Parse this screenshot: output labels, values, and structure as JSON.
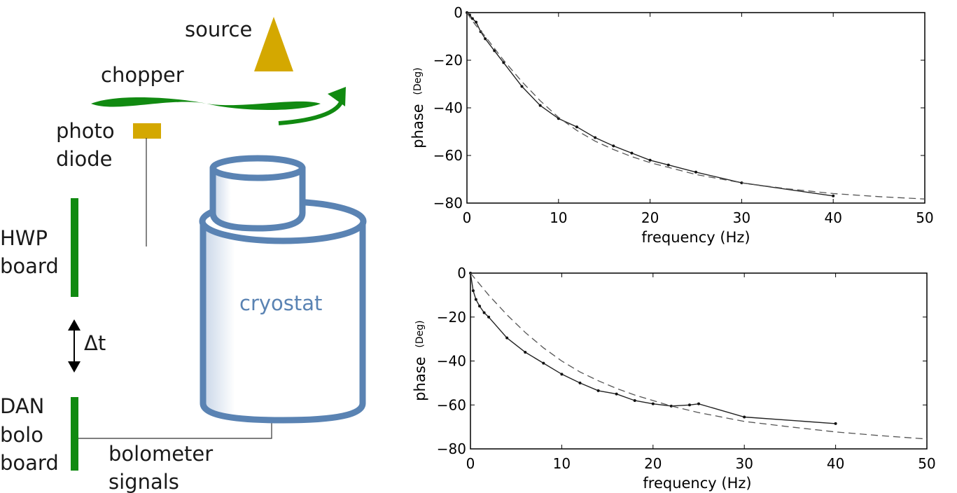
{
  "diagram": {
    "labels": {
      "source": "source",
      "chopper": "chopper",
      "photo_line1": "photo",
      "photo_line2": "diode",
      "hwp_line1": "HWP",
      "hwp_line2": "board",
      "delta_t": "Δt",
      "dan_line1": "DAN",
      "dan_line2": "bolo",
      "dan_line3": "board",
      "bolo_line1": "bolometer",
      "bolo_line2": "signals",
      "cryostat": "cryostat"
    },
    "colors": {
      "source": "#d4a800",
      "photodiode": "#d4a800",
      "chopper": "#118a11",
      "boards": "#118a11",
      "cryostat": "#5a83b3"
    }
  },
  "chart_data": [
    {
      "type": "line",
      "xlabel": "frequency (Hz)",
      "ylabel": "phase",
      "ylabel_unit": "(Deg)",
      "xlim": [
        0,
        50
      ],
      "ylim": [
        -80,
        0
      ],
      "xticks": [
        0,
        10,
        20,
        30,
        40,
        50
      ],
      "yticks": [
        0,
        -20,
        -40,
        -60,
        -80
      ],
      "series": [
        {
          "style": "solid-markers",
          "x": [
            0,
            0.3,
            0.6,
            1,
            1.5,
            2,
            3,
            4,
            6,
            8,
            10,
            12,
            14,
            16,
            18,
            20,
            22,
            25,
            30,
            40
          ],
          "y": [
            0,
            -1,
            -2.5,
            -4,
            -8,
            -11,
            -16,
            -21,
            -31,
            -39,
            -44.5,
            -48,
            -52.5,
            -56,
            -59,
            -62,
            -64,
            -67,
            -71.5,
            -77
          ]
        },
        {
          "style": "dashed",
          "x": [
            0,
            0.5,
            1,
            2,
            3,
            4,
            6,
            8,
            10,
            12,
            14,
            16,
            18,
            20,
            22,
            25,
            30,
            35,
            40,
            45,
            50
          ],
          "y": [
            0,
            -3,
            -5.5,
            -10,
            -15,
            -20,
            -29,
            -37,
            -44,
            -49.5,
            -54,
            -57.5,
            -60.5,
            -63,
            -65,
            -68,
            -71.5,
            -74,
            -76,
            -77.3,
            -78.3
          ]
        }
      ]
    },
    {
      "type": "line",
      "xlabel": "frequency (Hz)",
      "ylabel": "phase",
      "ylabel_unit": "(Deg)",
      "xlim": [
        0,
        50
      ],
      "ylim": [
        -80,
        0
      ],
      "xticks": [
        0,
        10,
        20,
        30,
        40,
        50
      ],
      "yticks": [
        0,
        -20,
        -40,
        -60,
        -80
      ],
      "series": [
        {
          "style": "solid-markers",
          "x": [
            0,
            0.3,
            0.6,
            1,
            1.5,
            2,
            4,
            6,
            8,
            10,
            12,
            14,
            16,
            18,
            20,
            22,
            24,
            25,
            30,
            40
          ],
          "y": [
            0,
            -8,
            -12,
            -15,
            -18,
            -20,
            -29.5,
            -36,
            -41,
            -46,
            -50,
            -53.5,
            -55,
            -58,
            -59.5,
            -60.5,
            -60,
            -59.5,
            -65.5,
            -68.5
          ]
        },
        {
          "style": "dashed",
          "x": [
            0,
            1,
            2,
            4,
            6,
            8,
            10,
            12,
            14,
            16,
            18,
            20,
            22,
            25,
            30,
            35,
            40,
            45,
            50
          ],
          "y": [
            0,
            -5,
            -10,
            -19,
            -27,
            -34,
            -40,
            -45,
            -49,
            -52.5,
            -55.5,
            -58,
            -60.5,
            -63.5,
            -67.5,
            -70,
            -72.3,
            -74,
            -75.5
          ]
        }
      ]
    }
  ]
}
